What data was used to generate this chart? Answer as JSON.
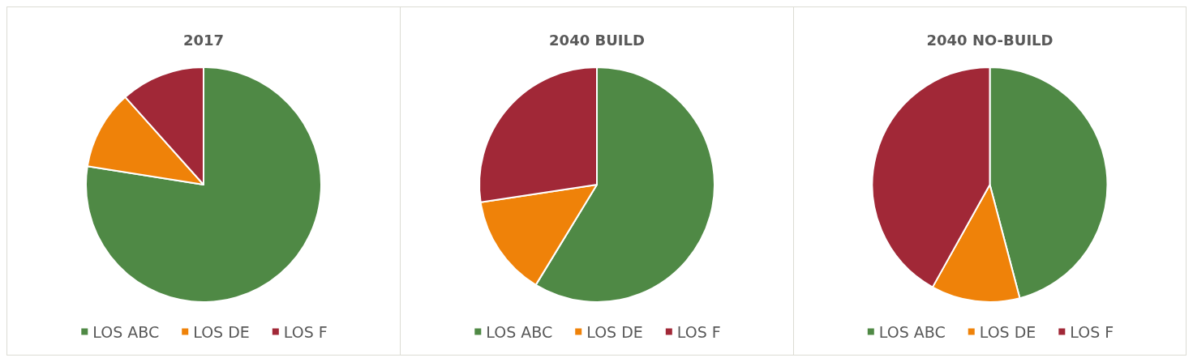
{
  "chart_data": [
    {
      "type": "pie",
      "title": "2017",
      "categories": [
        "LOS ABC",
        "LOS DE",
        "LOS F"
      ],
      "values": [
        77.5,
        10.9,
        11.6
      ],
      "colors": [
        "#4f8945",
        "#ef8209",
        "#a12837"
      ],
      "legend": "bottom"
    },
    {
      "type": "pie",
      "title": "2040 BUILD",
      "categories": [
        "LOS ABC",
        "LOS DE",
        "LOS F"
      ],
      "values": [
        58.7,
        13.9,
        27.4
      ],
      "colors": [
        "#4f8945",
        "#ef8209",
        "#a12837"
      ],
      "legend": "bottom"
    },
    {
      "type": "pie",
      "title": "2040 NO-BUILD",
      "categories": [
        "LOS ABC",
        "LOS DE",
        "LOS F"
      ],
      "values": [
        45.9,
        12.2,
        41.9
      ],
      "colors": [
        "#4f8945",
        "#ef8209",
        "#a12837"
      ],
      "legend": "bottom"
    }
  ]
}
